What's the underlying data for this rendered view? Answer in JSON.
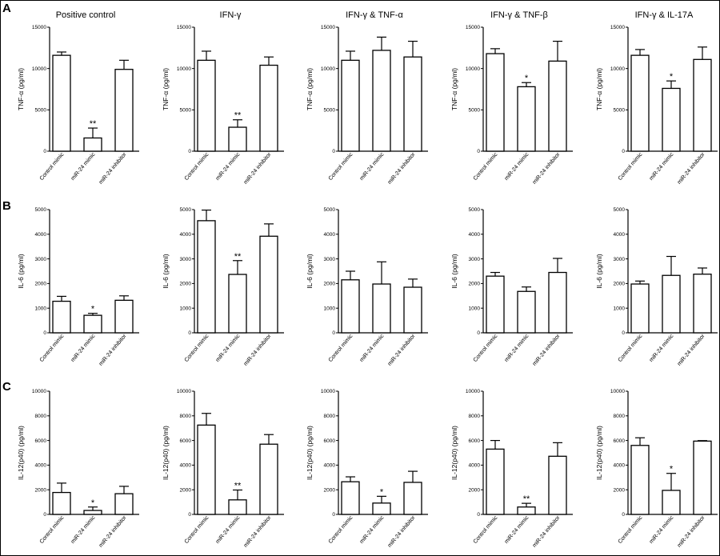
{
  "figure": {
    "row_labels": [
      "A",
      "B",
      "C"
    ]
  },
  "chart_data": [
    {
      "type": "bar",
      "row": "A",
      "title": "Positive control",
      "ylabel": "TNF-α (pg/ml)",
      "ylim": [
        0,
        15000
      ],
      "yticks": [
        0,
        5000,
        10000,
        15000
      ],
      "ytick_labels": [
        "0",
        "5000",
        "10000",
        "15000"
      ],
      "categories": [
        "Control mimic",
        "miR-24 mimic",
        "miR-24 inhibitor"
      ],
      "values": [
        11600,
        1600,
        9900
      ],
      "errors": [
        400,
        1200,
        1100
      ],
      "significance": [
        "",
        "**",
        ""
      ]
    },
    {
      "type": "bar",
      "row": "A",
      "title": "IFN-γ",
      "ylabel": "TNF-α (pg/ml)",
      "ylim": [
        0,
        15000
      ],
      "yticks": [
        0,
        5000,
        10000,
        15000
      ],
      "ytick_labels": [
        "0",
        "5000",
        "10000",
        "15000"
      ],
      "categories": [
        "Control mimic",
        "miR-24 mimic",
        "miR-24 inhibitor"
      ],
      "values": [
        11000,
        2900,
        10400
      ],
      "errors": [
        1100,
        900,
        1000
      ],
      "significance": [
        "",
        "**",
        ""
      ]
    },
    {
      "type": "bar",
      "row": "A",
      "title": "IFN-γ & TNF-α",
      "ylabel": "TNF-α (pg/ml)",
      "ylim": [
        0,
        15000
      ],
      "yticks": [
        0,
        5000,
        10000,
        15000
      ],
      "ytick_labels": [
        "0",
        "5000",
        "10000",
        "15000"
      ],
      "categories": [
        "Control mimic",
        "miR-24 mimic",
        "miR-24 inhibitor"
      ],
      "values": [
        11000,
        12200,
        11400
      ],
      "errors": [
        1100,
        1600,
        1900
      ],
      "significance": [
        "",
        "",
        ""
      ]
    },
    {
      "type": "bar",
      "row": "A",
      "title": "IFN-γ & TNF-β",
      "ylabel": "TNF-α (pg/ml)",
      "ylim": [
        0,
        15000
      ],
      "yticks": [
        0,
        5000,
        10000,
        15000
      ],
      "ytick_labels": [
        "0",
        "5000",
        "10000",
        "15000"
      ],
      "categories": [
        "Control mimic",
        "miR-24 mimic",
        "miR-24 inhibitor"
      ],
      "values": [
        11800,
        7800,
        10900
      ],
      "errors": [
        600,
        500,
        2400
      ],
      "significance": [
        "",
        "*",
        ""
      ]
    },
    {
      "type": "bar",
      "row": "A",
      "title": "IFN-γ & IL-17A",
      "ylabel": "TNF-α (pg/ml)",
      "ylim": [
        0,
        15000
      ],
      "yticks": [
        0,
        5000,
        10000,
        15000
      ],
      "ytick_labels": [
        "0",
        "5000",
        "10000",
        "15000"
      ],
      "categories": [
        "Control mimic",
        "miR-24 mimic",
        "miR-24 inhibitor"
      ],
      "values": [
        11600,
        7600,
        11100
      ],
      "errors": [
        700,
        900,
        1500
      ],
      "significance": [
        "",
        "*",
        ""
      ]
    },
    {
      "type": "bar",
      "row": "B",
      "title": "",
      "ylabel": "IL-6 (pg/ml)",
      "ylim": [
        0,
        5000
      ],
      "yticks": [
        0,
        1000,
        2000,
        3000,
        4000,
        5000
      ],
      "ytick_labels": [
        "0",
        "1000",
        "2000",
        "3000",
        "4000",
        "5000"
      ],
      "categories": [
        "Control mimic",
        "miR-24 mimic",
        "miR-24 inhibitor"
      ],
      "values": [
        1280,
        710,
        1320
      ],
      "errors": [
        200,
        80,
        180
      ],
      "significance": [
        "",
        "*",
        ""
      ]
    },
    {
      "type": "bar",
      "row": "B",
      "title": "",
      "ylabel": "IL-6 (pg/ml)",
      "ylim": [
        0,
        5000
      ],
      "yticks": [
        0,
        1000,
        2000,
        3000,
        4000,
        5000
      ],
      "ytick_labels": [
        "0",
        "1000",
        "2000",
        "3000",
        "4000",
        "5000"
      ],
      "categories": [
        "Control mimic",
        "miR-24 mimic",
        "miR-24 inhibitor"
      ],
      "values": [
        4550,
        2370,
        3920
      ],
      "errors": [
        430,
        560,
        500
      ],
      "significance": [
        "",
        "**",
        ""
      ]
    },
    {
      "type": "bar",
      "row": "B",
      "title": "",
      "ylabel": "IL-6 (pg/ml)",
      "ylim": [
        0,
        5000
      ],
      "yticks": [
        0,
        1000,
        2000,
        3000,
        4000,
        5000
      ],
      "ytick_labels": [
        "0",
        "1000",
        "2000",
        "3000",
        "4000",
        "5000"
      ],
      "categories": [
        "Control mimic",
        "miR-24 mimic",
        "miR-24 inhibitor"
      ],
      "values": [
        2150,
        1980,
        1850
      ],
      "errors": [
        350,
        900,
        330
      ],
      "significance": [
        "",
        "",
        ""
      ]
    },
    {
      "type": "bar",
      "row": "B",
      "title": "",
      "ylabel": "IL-6 (pg/ml)",
      "ylim": [
        0,
        5000
      ],
      "yticks": [
        0,
        1000,
        2000,
        3000,
        4000,
        5000
      ],
      "ytick_labels": [
        "0",
        "1000",
        "2000",
        "3000",
        "4000",
        "5000"
      ],
      "categories": [
        "Control mimic",
        "miR-24 mimic",
        "miR-24 inhibitor"
      ],
      "values": [
        2300,
        1680,
        2450
      ],
      "errors": [
        150,
        180,
        570
      ],
      "significance": [
        "",
        "",
        ""
      ]
    },
    {
      "type": "bar",
      "row": "B",
      "title": "",
      "ylabel": "IL-6 (pg/ml)",
      "ylim": [
        0,
        5000
      ],
      "yticks": [
        0,
        1000,
        2000,
        3000,
        4000,
        5000
      ],
      "ytick_labels": [
        "0",
        "1000",
        "2000",
        "3000",
        "4000",
        "5000"
      ],
      "categories": [
        "Control mimic",
        "miR-24 mimic",
        "miR-24 inhibitor"
      ],
      "values": [
        1980,
        2330,
        2380
      ],
      "errors": [
        120,
        770,
        250
      ],
      "significance": [
        "",
        "",
        ""
      ]
    },
    {
      "type": "bar",
      "row": "C",
      "title": "",
      "ylabel": "IL-12(p40) (pg/ml)",
      "ylim": [
        0,
        10000
      ],
      "yticks": [
        0,
        2000,
        4000,
        6000,
        8000,
        10000
      ],
      "ytick_labels": [
        "0",
        "2000",
        "4000",
        "6000",
        "8000",
        "10000"
      ],
      "categories": [
        "Control mimic",
        "miR-24 mimic",
        "miR-24 inhibitor"
      ],
      "values": [
        1780,
        320,
        1680
      ],
      "errors": [
        760,
        280,
        600
      ],
      "significance": [
        "",
        "*",
        ""
      ]
    },
    {
      "type": "bar",
      "row": "C",
      "title": "",
      "ylabel": "IL-12(p40) (pg/ml)",
      "ylim": [
        0,
        10000
      ],
      "yticks": [
        0,
        2000,
        4000,
        6000,
        8000,
        10000
      ],
      "ytick_labels": [
        "0",
        "2000",
        "4000",
        "6000",
        "8000",
        "10000"
      ],
      "categories": [
        "Control mimic",
        "miR-24 mimic",
        "miR-24 inhibitor"
      ],
      "values": [
        7250,
        1180,
        5700
      ],
      "errors": [
        950,
        800,
        780
      ],
      "significance": [
        "",
        "**",
        ""
      ]
    },
    {
      "type": "bar",
      "row": "C",
      "title": "",
      "ylabel": "IL-12(p40) (pg/ml)",
      "ylim": [
        0,
        10000
      ],
      "yticks": [
        0,
        2000,
        4000,
        6000,
        8000,
        10000
      ],
      "ytick_labels": [
        "0",
        "2000",
        "4000",
        "6000",
        "8000",
        "10000"
      ],
      "categories": [
        "Control mimic",
        "miR-24 mimic",
        "miR-24 inhibitor"
      ],
      "values": [
        2650,
        920,
        2600
      ],
      "errors": [
        400,
        550,
        900
      ],
      "significance": [
        "",
        "*",
        ""
      ]
    },
    {
      "type": "bar",
      "row": "C",
      "title": "",
      "ylabel": "IL-12(p40) (pg/ml)",
      "ylim": [
        0,
        10000
      ],
      "yticks": [
        0,
        2000,
        4000,
        6000,
        8000,
        10000
      ],
      "ytick_labels": [
        "0",
        "2000",
        "4000",
        "6000",
        "8000",
        "10000"
      ],
      "categories": [
        "Control mimic",
        "miR-24 mimic",
        "miR-24 inhibitor"
      ],
      "values": [
        5300,
        600,
        4720
      ],
      "errors": [
        700,
        300,
        1100
      ],
      "significance": [
        "",
        "**",
        ""
      ]
    },
    {
      "type": "bar",
      "row": "C",
      "title": "",
      "ylabel": "IL-12(p40) (pg/ml)",
      "ylim": [
        0,
        10000
      ],
      "yticks": [
        0,
        2000,
        4000,
        6000,
        8000,
        10000
      ],
      "ytick_labels": [
        "0",
        "2000",
        "4000",
        "6000",
        "8000",
        "10000"
      ],
      "categories": [
        "Control mimic",
        "miR-24 mimic",
        "miR-24 inhibitor"
      ],
      "values": [
        5600,
        1950,
        5950
      ],
      "errors": [
        620,
        1380,
        40
      ],
      "significance": [
        "",
        "*",
        ""
      ]
    }
  ]
}
